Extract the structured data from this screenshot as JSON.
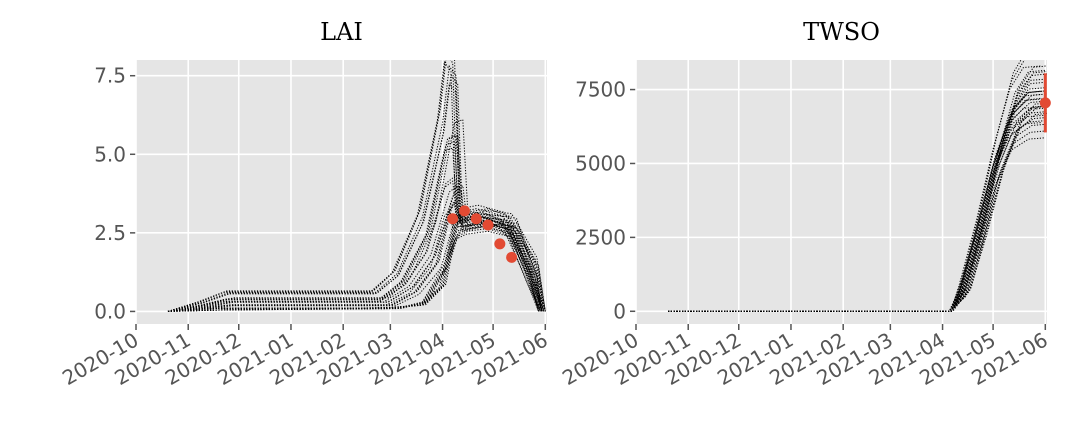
{
  "chart_data": [
    {
      "type": "line",
      "title": "LAI",
      "xlabel": "",
      "ylabel": "",
      "x_ticks": [
        "2020-10",
        "2020-11",
        "2020-12",
        "2021-01",
        "2021-02",
        "2021-03",
        "2021-04",
        "2021-05",
        "2021-06"
      ],
      "y_ticks": [
        "0.0",
        "2.5",
        "5.0",
        "7.5"
      ],
      "xlim": [
        "2020-10-01",
        "2021-06-02"
      ],
      "ylim": [
        -0.4,
        8.0
      ],
      "grid": true,
      "ensemble": {
        "line_style": "dotted",
        "color": "#000000",
        "members": 32,
        "series": [
          {
            "points": [
              [
                "2020-10-20",
                0
              ],
              [
                "2020-11-01",
                0.05
              ],
              [
                "2020-11-20",
                0.1
              ],
              [
                "2020-12-15",
                0.1
              ],
              [
                "2021-02-10",
                0.1
              ],
              [
                "2021-03-01",
                0.12
              ],
              [
                "2021-03-20",
                0.2
              ],
              [
                "2021-04-01",
                0.8
              ],
              [
                "2021-04-10",
                3.0
              ],
              [
                "2021-04-20",
                3.1
              ],
              [
                "2021-05-05",
                2.9
              ],
              [
                "2021-05-15",
                2.3
              ],
              [
                "2021-05-25",
                1.0
              ],
              [
                "2021-05-30",
                0.0
              ]
            ]
          },
          {
            "points": [
              [
                "2020-10-20",
                0
              ],
              [
                "2020-11-10",
                0.3
              ],
              [
                "2020-11-25",
                0.6
              ],
              [
                "2021-02-20",
                0.6
              ],
              [
                "2021-03-05",
                1.2
              ],
              [
                "2021-03-20",
                3.0
              ],
              [
                "2021-04-01",
                6.0
              ],
              [
                "2021-04-05",
                7.8
              ],
              [
                "2021-04-09",
                7.5
              ],
              [
                "2021-04-12",
                2.8
              ],
              [
                "2021-04-25",
                2.9
              ],
              [
                "2021-05-10",
                2.6
              ],
              [
                "2021-05-22",
                1.2
              ],
              [
                "2021-05-28",
                0.0
              ]
            ]
          },
          {
            "points": [
              [
                "2020-10-20",
                0
              ],
              [
                "2020-11-10",
                0.2
              ],
              [
                "2020-11-25",
                0.4
              ],
              [
                "2021-02-25",
                0.4
              ],
              [
                "2021-03-10",
                1.0
              ],
              [
                "2021-03-25",
                2.6
              ],
              [
                "2021-04-05",
                5.5
              ],
              [
                "2021-04-10",
                5.6
              ],
              [
                "2021-04-13",
                2.9
              ],
              [
                "2021-04-25",
                3.0
              ],
              [
                "2021-05-12",
                2.7
              ],
              [
                "2021-05-24",
                1.0
              ],
              [
                "2021-05-29",
                0.0
              ]
            ]
          },
          {
            "points": [
              [
                "2020-10-20",
                0
              ],
              [
                "2020-11-10",
                0.15
              ],
              [
                "2020-11-25",
                0.3
              ],
              [
                "2021-02-25",
                0.3
              ],
              [
                "2021-03-12",
                0.8
              ],
              [
                "2021-03-25",
                1.8
              ],
              [
                "2021-04-05",
                3.8
              ],
              [
                "2021-04-10",
                4.0
              ],
              [
                "2021-04-13",
                2.7
              ],
              [
                "2021-04-25",
                2.9
              ],
              [
                "2021-05-12",
                2.8
              ],
              [
                "2021-05-25",
                1.3
              ],
              [
                "2021-05-31",
                0.0
              ]
            ]
          },
          {
            "points": [
              [
                "2020-10-20",
                0
              ],
              [
                "2020-11-10",
                0.1
              ],
              [
                "2020-11-25",
                0.2
              ],
              [
                "2021-03-01",
                0.2
              ],
              [
                "2021-03-15",
                0.6
              ],
              [
                "2021-03-28",
                1.5
              ],
              [
                "2021-04-05",
                3.2
              ],
              [
                "2021-04-08",
                3.4
              ],
              [
                "2021-04-10",
                2.8
              ],
              [
                "2021-04-25",
                3.0
              ],
              [
                "2021-05-10",
                2.9
              ],
              [
                "2021-05-25",
                1.6
              ],
              [
                "2021-06-01",
                0.0
              ]
            ]
          },
          {
            "points": [
              [
                "2020-10-20",
                0
              ],
              [
                "2020-11-20",
                0.05
              ],
              [
                "2021-03-05",
                0.1
              ],
              [
                "2021-03-20",
                0.3
              ],
              [
                "2021-04-02",
                1.5
              ],
              [
                "2021-04-08",
                2.5
              ],
              [
                "2021-04-15",
                2.7
              ],
              [
                "2021-04-28",
                2.8
              ],
              [
                "2021-05-12",
                2.6
              ],
              [
                "2021-05-24",
                1.1
              ],
              [
                "2021-05-30",
                0.0
              ]
            ]
          }
        ]
      },
      "observations": {
        "color": "#E24A33",
        "points": [
          {
            "x": "2021-04-07",
            "y": 2.95
          },
          {
            "x": "2021-04-14",
            "y": 3.2
          },
          {
            "x": "2021-04-21",
            "y": 2.95
          },
          {
            "x": "2021-04-28",
            "y": 2.75
          },
          {
            "x": "2021-05-05",
            "y": 2.15
          },
          {
            "x": "2021-05-12",
            "y": 1.72
          }
        ]
      }
    },
    {
      "type": "line",
      "title": "TWSO",
      "xlabel": "",
      "ylabel": "",
      "x_ticks": [
        "2020-10",
        "2020-11",
        "2020-12",
        "2021-01",
        "2021-02",
        "2021-03",
        "2021-04",
        "2021-05",
        "2021-06"
      ],
      "y_ticks": [
        "0",
        "2500",
        "5000",
        "7500"
      ],
      "xlim": [
        "2020-10-01",
        "2021-06-02"
      ],
      "ylim": [
        -430,
        8500
      ],
      "grid": true,
      "ensemble": {
        "line_style": "dotted",
        "color": "#000000",
        "members": 32,
        "series": [
          {
            "points": [
              [
                "2020-10-20",
                0
              ],
              [
                "2021-04-05",
                0
              ],
              [
                "2021-04-12",
                600
              ],
              [
                "2021-04-22",
                2500
              ],
              [
                "2021-05-02",
                4800
              ],
              [
                "2021-05-12",
                6200
              ],
              [
                "2021-05-22",
                6700
              ],
              [
                "2021-06-01",
                6750
              ]
            ]
          },
          {
            "points": [
              [
                "2020-10-20",
                0
              ],
              [
                "2021-04-06",
                0
              ],
              [
                "2021-04-14",
                900
              ],
              [
                "2021-04-24",
                3000
              ],
              [
                "2021-05-04",
                5400
              ],
              [
                "2021-05-14",
                7400
              ],
              [
                "2021-05-22",
                8100
              ],
              [
                "2021-06-01",
                8150
              ]
            ]
          },
          {
            "points": [
              [
                "2020-10-20",
                0
              ],
              [
                "2021-04-05",
                0
              ],
              [
                "2021-04-13",
                700
              ],
              [
                "2021-04-23",
                2700
              ],
              [
                "2021-05-03",
                5100
              ],
              [
                "2021-05-13",
                6800
              ],
              [
                "2021-05-22",
                7400
              ],
              [
                "2021-06-01",
                7450
              ]
            ]
          },
          {
            "points": [
              [
                "2020-10-20",
                0
              ],
              [
                "2021-04-07",
                0
              ],
              [
                "2021-04-15",
                800
              ],
              [
                "2021-04-25",
                2900
              ],
              [
                "2021-05-05",
                5000
              ],
              [
                "2021-05-15",
                6400
              ],
              [
                "2021-05-24",
                6900
              ],
              [
                "2021-06-01",
                6950
              ]
            ]
          },
          {
            "points": [
              [
                "2020-10-20",
                0
              ],
              [
                "2021-04-06",
                0
              ],
              [
                "2021-04-14",
                750
              ],
              [
                "2021-04-24",
                2800
              ],
              [
                "2021-05-04",
                5200
              ],
              [
                "2021-05-14",
                7000
              ],
              [
                "2021-05-23",
                7700
              ],
              [
                "2021-06-01",
                7750
              ]
            ]
          },
          {
            "points": [
              [
                "2020-10-20",
                0
              ],
              [
                "2021-04-05",
                0
              ],
              [
                "2021-04-12",
                500
              ],
              [
                "2021-04-22",
                2300
              ],
              [
                "2021-05-02",
                4600
              ],
              [
                "2021-05-12",
                6000
              ],
              [
                "2021-05-22",
                6400
              ],
              [
                "2021-06-01",
                6450
              ]
            ]
          }
        ]
      },
      "observations": {
        "color": "#E24A33",
        "points": [
          {
            "x": "2021-06-01",
            "y": 7050,
            "yerr": 1000
          }
        ]
      }
    }
  ]
}
